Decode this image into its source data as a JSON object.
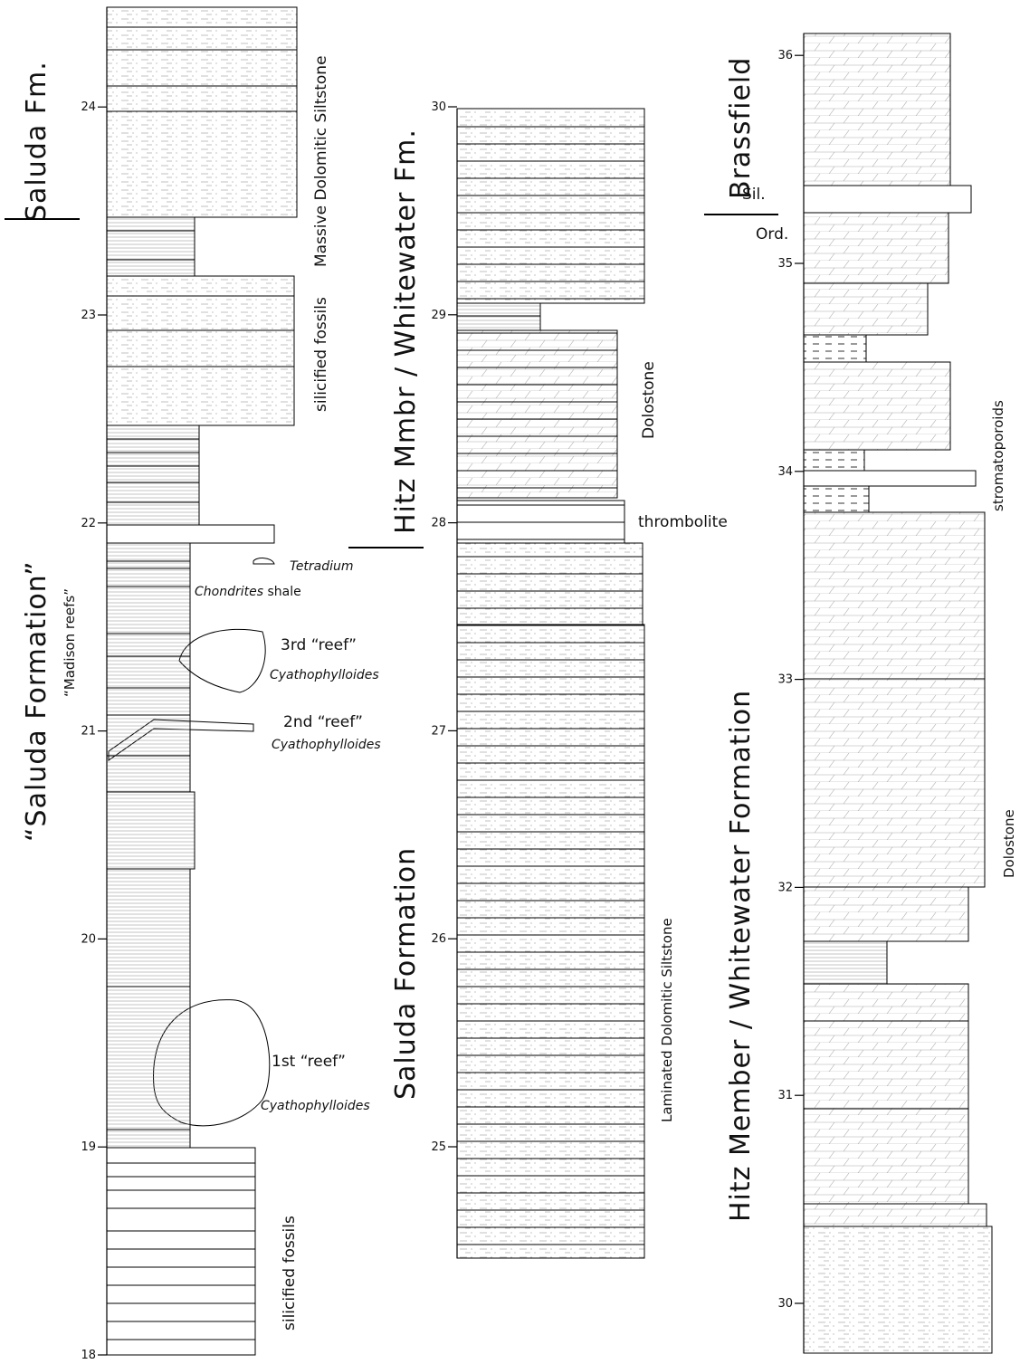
{
  "columns": [
    {
      "ticks": [
        18,
        19,
        20,
        21,
        22,
        23,
        24
      ]
    },
    {
      "ticks": [
        25,
        26,
        27,
        28,
        29,
        30
      ]
    },
    {
      "ticks": [
        30,
        31,
        32,
        33,
        34,
        35,
        36
      ]
    }
  ],
  "labels": {
    "saluda_fm": "Saluda Fm.",
    "saluda_formation_q": "“Saluda Formation”",
    "madison_reefs": "“Madison reefs”",
    "massive_siltstone": "Massive Dolomitic Siltstone",
    "silicified_fossils_upper": "silicified fossils",
    "silicified_fossils_lower": "silicified fossils",
    "tetradium": "Tetradium",
    "chondrites": "Chondrites",
    "shale": " shale",
    "reef3": "3rd “reef”",
    "reef3_taxon": "Cyathophylloides",
    "reef2": "2nd “reef”",
    "reef2_taxon": "Cyathophylloides",
    "reef1": "1st “reef”",
    "reef1_taxon": "Cyathophylloides",
    "hitz_mmbr": "Hitz Mmbr / Whitewater Fm.",
    "saluda_formation": "Saluda Formation",
    "dolostone_mid": "Dolostone",
    "thrombolite": "thrombolite",
    "laminated": "Laminated Dolomitic Siltstone",
    "brassfield": "Brassfield",
    "sil": "Sil.",
    "ord": "Ord.",
    "hitz_member": "Hitz Member / Whitewater Formation",
    "stromatoporoids": "stromatoporoids",
    "dolostone_right": "Dolostone"
  }
}
